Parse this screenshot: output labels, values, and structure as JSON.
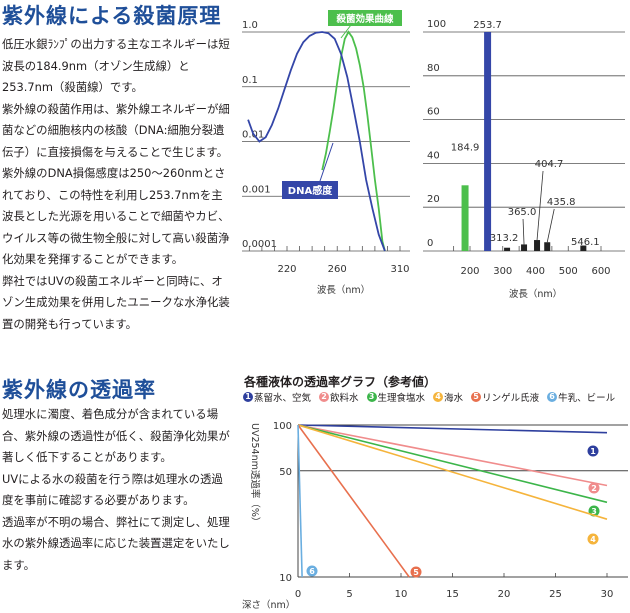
{
  "section1": {
    "title": "紫外線による殺菌原理",
    "paragraphs": [
      "低圧水銀ﾗﾝﾌﾟの出力する主なエネルギーは短波長の184.9nm（オゾン生成線）と253.7nm（殺菌線）です。",
      "紫外線の殺菌作用は、紫外線エネルギーが細菌などの細胞核内の核酸（DNA:細胞分裂遺伝子）に直接損傷を与えることで生じます。紫外線のDNA損傷感度は250～260nmとされており、この特性を利用し253.7nmを主波長とした光源を用いることで細菌やカビ、ウイルス等の微生物全般に対して高い殺菌浄化効果を発揮することができます。",
      "弊社ではUVの殺菌エネルギーと同時に、オゾン生成効果を併用したユニークな水浄化装置の開発も行っています。"
    ]
  },
  "section2": {
    "title": "紫外線の透過率",
    "paragraphs": [
      "処理水に濁度、着色成分が含まれている場合、紫外線の透過性が低く、殺菌浄化効果が著しく低下することがあります。",
      "UVによる水の殺菌を行う際は処理水の透過度を事前に確認する必要があります。",
      "透過率が不明の場合、弊社にて測定し、処理水の紫外線透過率に応じた装置選定をいたします。"
    ]
  },
  "chart_data": [
    {
      "type": "line",
      "xlabel": "波長（nm）",
      "ylabel": "",
      "x_ticks": [
        "220",
        "260",
        "310"
      ],
      "y_ticks": [
        "1.0",
        "0.1",
        "0.01",
        "0.001",
        "0.0001"
      ],
      "xlim": [
        190,
        310
      ],
      "ylim": [
        0.0001,
        1.0
      ],
      "log_y": true,
      "series": [
        {
          "name": "殺菌効果曲線",
          "color": "#4cbf4c",
          "x": [
            248,
            251,
            254,
            257,
            260,
            263,
            266,
            269,
            272,
            275,
            278,
            281,
            284,
            287,
            290,
            293,
            296,
            298
          ],
          "y": [
            0.003,
            0.006,
            0.015,
            0.04,
            0.12,
            0.35,
            0.75,
            1.0,
            0.8,
            0.5,
            0.25,
            0.1,
            0.03,
            0.008,
            0.002,
            0.0006,
            0.00015,
            0.0001
          ]
        },
        {
          "name": "DNA感度",
          "color": "#3446a8",
          "x": [
            189,
            193,
            198,
            203,
            208,
            213,
            218,
            223,
            228,
            233,
            238,
            243,
            248,
            253,
            258,
            263,
            268,
            273,
            278,
            283,
            288,
            293,
            298
          ],
          "y": [
            0.025,
            0.014,
            0.01,
            0.012,
            0.02,
            0.04,
            0.09,
            0.2,
            0.4,
            0.65,
            0.85,
            0.97,
            1.0,
            0.95,
            0.75,
            0.4,
            0.15,
            0.04,
            0.01,
            0.002,
            0.0006,
            0.0002,
            0.0001
          ]
        }
      ]
    },
    {
      "type": "bar",
      "xlabel": "波長（nm）",
      "ylabel": "",
      "x_ticks": [
        "200",
        "300",
        "400",
        "500",
        "600"
      ],
      "y_ticks": [
        "0",
        "20",
        "40",
        "60",
        "80",
        "100"
      ],
      "xlim": [
        120,
        630
      ],
      "ylim": [
        0,
        100
      ],
      "bars": [
        {
          "label": "184.9",
          "x": 184.9,
          "value": 30,
          "color": "#4cbf4c"
        },
        {
          "label": "253.7",
          "x": 253.7,
          "value": 100,
          "color": "#3446a8"
        },
        {
          "label": "313.2",
          "x": 313.2,
          "value": 1.5,
          "color": "#222222"
        },
        {
          "label": "365.0",
          "x": 365.0,
          "value": 3,
          "color": "#222222"
        },
        {
          "label": "404.7",
          "x": 404.7,
          "value": 5,
          "color": "#222222"
        },
        {
          "label": "435.8",
          "x": 435.8,
          "value": 4,
          "color": "#222222"
        },
        {
          "label": "546.1",
          "x": 546.1,
          "value": 2.5,
          "color": "#222222"
        }
      ]
    },
    {
      "type": "line",
      "title": "各種液体の透過率グラフ（参考値）",
      "xlabel": "深さ（nm）",
      "ylabel": "UV254nm透過率（%）",
      "x_ticks": [
        "0",
        "5",
        "10",
        "15",
        "20",
        "25",
        "30"
      ],
      "y_ticks": [
        "100",
        "50",
        "10"
      ],
      "xlim": [
        0,
        30
      ],
      "ylim": [
        10,
        100
      ],
      "log_y": true,
      "series": [
        {
          "num": "1",
          "name": "蒸留水、空気",
          "color": "#2e3f9e",
          "x": [
            0,
            30
          ],
          "y": [
            100,
            89
          ]
        },
        {
          "num": "2",
          "name": "飲料水",
          "color": "#f08c8c",
          "x": [
            0,
            30
          ],
          "y": [
            100,
            40
          ]
        },
        {
          "num": "3",
          "name": "生理食塩水",
          "color": "#3cb54a",
          "x": [
            0,
            30
          ],
          "y": [
            100,
            31
          ]
        },
        {
          "num": "4",
          "name": "海水",
          "color": "#f5b43c",
          "x": [
            0,
            30
          ],
          "y": [
            100,
            24
          ]
        },
        {
          "num": "5",
          "name": "リンゲル氏液",
          "color": "#e8704e",
          "x": [
            0,
            10.8
          ],
          "y": [
            100,
            10
          ]
        },
        {
          "num": "6",
          "name": "牛乳、ビール",
          "color": "#6aaee0",
          "x": [
            0,
            0.4
          ],
          "y": [
            100,
            10
          ]
        }
      ]
    }
  ]
}
